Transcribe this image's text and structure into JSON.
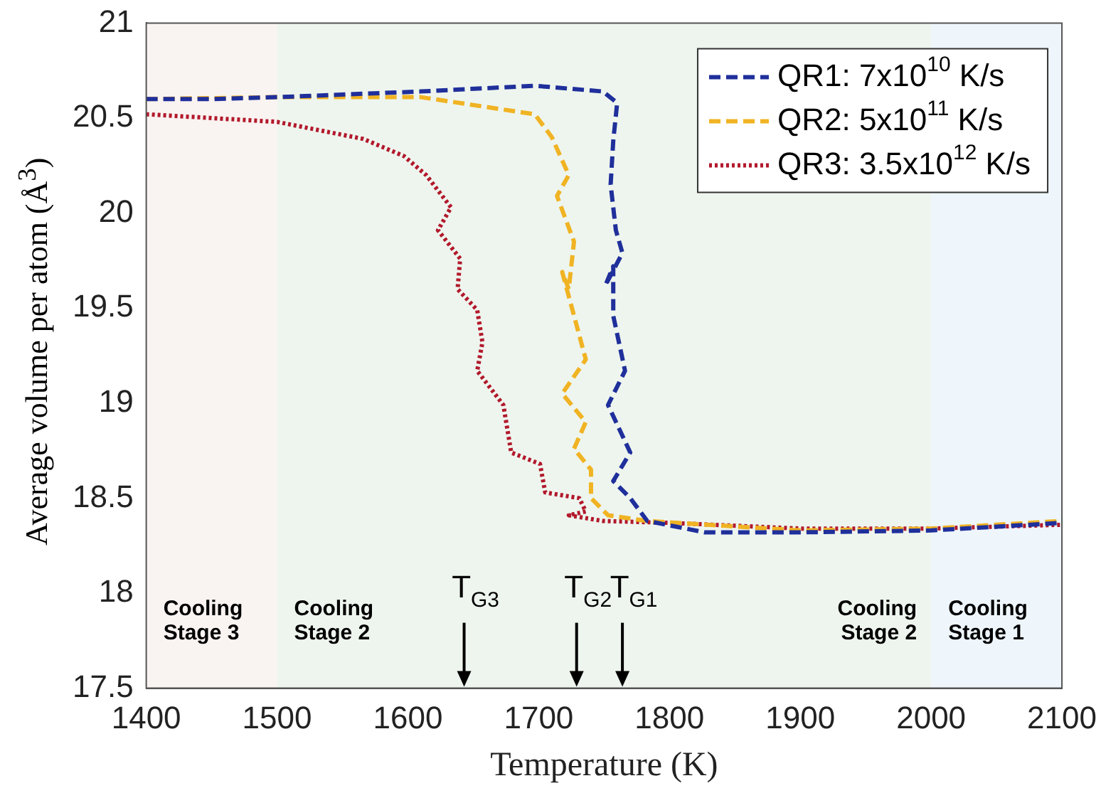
{
  "chart_data": {
    "type": "line",
    "xlabel": "Temperature (K)",
    "ylabel": "Average volume per atom (Å$^{3}$)",
    "xlim": [
      1400,
      2100
    ],
    "xticks": [
      1400,
      1500,
      1600,
      1700,
      1800,
      1900,
      2000,
      2100
    ],
    "ylim": [
      17.5,
      21
    ],
    "yticks": [
      17.5,
      18,
      18.5,
      19,
      19.5,
      20,
      20.5,
      21
    ],
    "grid": false,
    "legend": "top right",
    "series": [
      {
        "name": "QR1: 7x10$^{10}$ K/s",
        "color": "#1f2f9b",
        "line_style": "dashed",
        "x": [
          1400,
          1450,
          1500,
          1610,
          1697,
          1749,
          1760,
          1757,
          1755,
          1759,
          1764,
          1751,
          1757,
          1757,
          1766,
          1753,
          1770,
          1757,
          1770,
          1783,
          1827,
          1900,
          2000,
          2100
        ],
        "values": [
          20.6,
          20.6,
          20.61,
          20.64,
          20.67,
          20.64,
          20.58,
          20.38,
          20.15,
          19.91,
          19.79,
          19.62,
          19.72,
          19.46,
          19.17,
          18.99,
          18.74,
          18.59,
          18.5,
          18.38,
          18.32,
          18.32,
          18.33,
          18.37
        ]
      },
      {
        "name": "QR2: 5x10$^{11}$ K/s",
        "color": "#f0b323",
        "line_style": "dashed",
        "x": [
          1400,
          1500,
          1610,
          1697,
          1710,
          1723,
          1714,
          1727,
          1723,
          1718,
          1736,
          1718,
          1736,
          1727,
          1740,
          1740,
          1753,
          1783,
          1900,
          2000,
          2100
        ],
        "values": [
          20.6,
          20.61,
          20.61,
          20.52,
          20.4,
          20.2,
          20.09,
          19.85,
          19.6,
          19.69,
          19.23,
          19.05,
          18.9,
          18.76,
          18.65,
          18.5,
          18.41,
          18.38,
          18.33,
          18.34,
          18.38
        ]
      },
      {
        "name": "QR3: 3.5x10$^{12}$ K/s",
        "color": "#b2182b",
        "line_style": "dotted",
        "x": [
          1400,
          1450,
          1500,
          1566,
          1597,
          1614,
          1633,
          1623,
          1640,
          1638,
          1653,
          1657,
          1653,
          1673,
          1679,
          1701,
          1705,
          1731,
          1736,
          1723,
          1749,
          1800,
          1900,
          2000,
          2100
        ],
        "values": [
          20.52,
          20.5,
          20.48,
          20.39,
          20.3,
          20.2,
          20.03,
          19.91,
          19.76,
          19.6,
          19.49,
          19.32,
          19.17,
          18.99,
          18.74,
          18.68,
          18.53,
          18.5,
          18.43,
          18.41,
          18.38,
          18.37,
          18.34,
          18.34,
          18.36
        ]
      }
    ],
    "bands": [
      {
        "axis": "x",
        "from": 1400,
        "to": 1500,
        "label": "Cooling Stage 3",
        "color": "#f9f3f1"
      },
      {
        "axis": "x",
        "from": 1500,
        "to": 2000,
        "label": "Cooling Stage 2",
        "color": "#eef5ee"
      },
      {
        "axis": "x",
        "from": 2000,
        "to": 2100,
        "label": "Cooling Stage 1",
        "color": "#eef6fb"
      }
    ],
    "annotations": [
      "Cooling Stage 2",
      {
        "text": "T$_{G3}$",
        "x": 1643,
        "y": 17.5
      },
      {
        "text": "T$_{G2}$",
        "x": 1729,
        "y": 17.5
      },
      {
        "text": "T$_{G1}$",
        "x": 1764,
        "y": 17.5
      }
    ]
  }
}
